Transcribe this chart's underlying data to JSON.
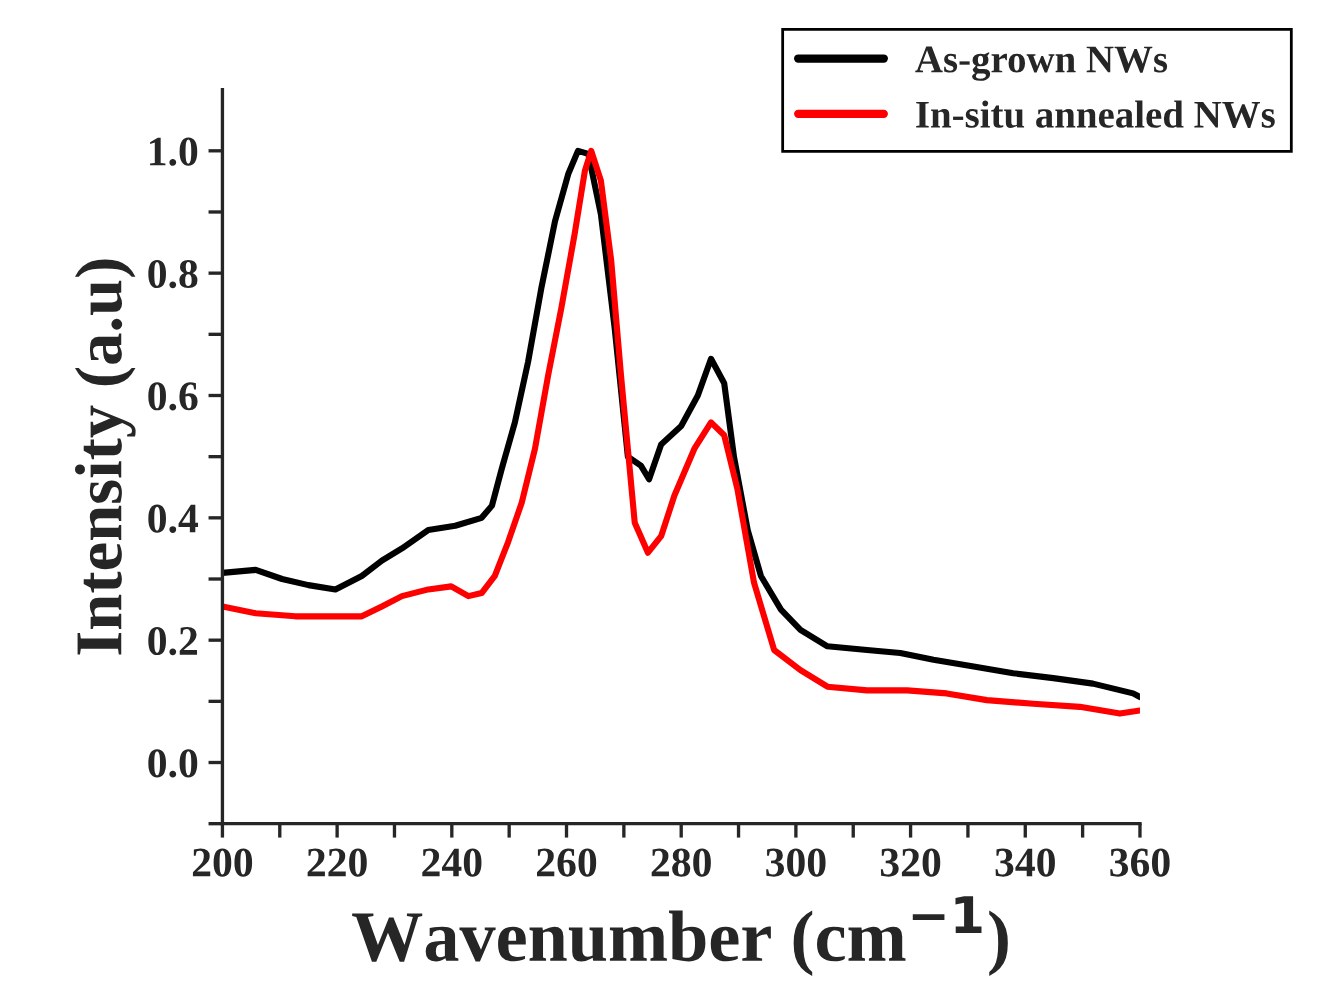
{
  "chart_data": {
    "type": "line",
    "xlabel": "Wavenumber (cm$^{−1}$)",
    "ylabel": "Intensity (a.u)",
    "xlim": [
      200,
      360
    ],
    "ylim": [
      -0.1,
      1.1
    ],
    "xticks": [
      200,
      {
        "value": 210,
        "label": null
      },
      220,
      {
        "value": 230,
        "label": null
      },
      240,
      {
        "value": 250,
        "label": null
      },
      260,
      {
        "value": 270,
        "label": null
      },
      280,
      {
        "value": 290,
        "label": null
      },
      300,
      {
        "value": 310,
        "label": null
      },
      320,
      {
        "value": 330,
        "label": null
      },
      340,
      {
        "value": 350,
        "label": null
      },
      360
    ],
    "yticks": [
      {
        "value": -0.1,
        "label": null
      },
      {
        "value": 0,
        "label": "0.0"
      },
      {
        "value": 0.1,
        "label": null
      },
      0.2,
      {
        "value": 0.3,
        "label": null
      },
      0.4,
      {
        "value": 0.5,
        "label": null
      },
      0.6,
      {
        "value": 0.7,
        "label": null
      },
      0.8,
      {
        "value": 0.9,
        "label": null
      },
      {
        "value": 1,
        "label": "1.0"
      }
    ],
    "grid": false,
    "legend": "top right",
    "marker": "none",
    "line_style": "solid",
    "series": [
      {
        "name": "As-grown NWs",
        "color": "#000000",
        "x": [
          200,
          205.8,
          210.4,
          215,
          219.7,
          224.3,
          227.8,
          231.3,
          235.9,
          240.6,
          245.2,
          247,
          248.7,
          251,
          253.3,
          255.6,
          258,
          260.3,
          262,
          263.8,
          266,
          268.4,
          270.7,
          273,
          274.4,
          276.5,
          280,
          282.9,
          285.2,
          287.5,
          289.2,
          291.6,
          293.9,
          297.4,
          300.8,
          305.5,
          312.4,
          318.2,
          324,
          331,
          337.9,
          344.9,
          351.8,
          358.8,
          360
        ],
        "values": [
          0.31,
          0.315,
          0.3,
          0.29,
          0.283,
          0.305,
          0.33,
          0.35,
          0.38,
          0.387,
          0.4,
          0.42,
          0.48,
          0.556,
          0.655,
          0.775,
          0.885,
          0.962,
          1.0,
          0.995,
          0.896,
          0.71,
          0.5,
          0.485,
          0.463,
          0.52,
          0.55,
          0.6,
          0.66,
          0.62,
          0.5,
          0.38,
          0.305,
          0.25,
          0.217,
          0.19,
          0.184,
          0.179,
          0.168,
          0.157,
          0.146,
          0.138,
          0.129,
          0.113,
          0.107
        ]
      },
      {
        "name": "In-situ annealed NWs",
        "color": "#ff0000",
        "x": [
          200,
          205.8,
          212.7,
          219.7,
          224.3,
          227.8,
          231.3,
          235.9,
          239.9,
          242.9,
          245.2,
          247.5,
          249.8,
          252.2,
          254.5,
          256.8,
          259.1,
          261.4,
          263.2,
          264.3,
          266,
          267.8,
          269.5,
          271.9,
          274.2,
          276.5,
          278.8,
          282.3,
          285.2,
          287.5,
          289.8,
          292.7,
          296.2,
          300.8,
          305.5,
          312.4,
          319.4,
          326.3,
          333.3,
          341.4,
          349.5,
          356.5,
          360
        ],
        "values": [
          0.255,
          0.244,
          0.239,
          0.239,
          0.239,
          0.255,
          0.272,
          0.283,
          0.288,
          0.272,
          0.277,
          0.305,
          0.36,
          0.425,
          0.513,
          0.633,
          0.743,
          0.863,
          0.967,
          1.0,
          0.951,
          0.82,
          0.633,
          0.392,
          0.343,
          0.37,
          0.436,
          0.513,
          0.556,
          0.535,
          0.447,
          0.294,
          0.184,
          0.151,
          0.124,
          0.118,
          0.118,
          0.113,
          0.102,
          0.096,
          0.091,
          0.08,
          0.085
        ]
      }
    ]
  }
}
